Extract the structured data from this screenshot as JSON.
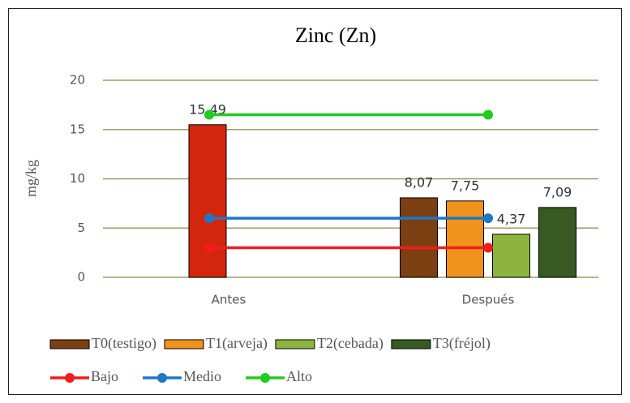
{
  "chart_data": {
    "type": "bar",
    "title": "Zinc (Zn)",
    "y_label": "mg/kg",
    "categories": [
      "Antes",
      "Después"
    ],
    "ylim": [
      0,
      20
    ],
    "yticks": [
      0,
      5,
      10,
      15,
      20
    ],
    "grid": true,
    "series": [
      {
        "name": "T0(testigo)",
        "color": "#7b3f12",
        "point_colors": [
          "#d4260f",
          "#7b3f12"
        ],
        "values": [
          15.49,
          8.07
        ],
        "value_labels": [
          "15,49",
          "8,07"
        ]
      },
      {
        "name": "T1(arveja)",
        "color": "#f0921c",
        "values": [
          null,
          7.75
        ],
        "value_labels": [
          null,
          "7,75"
        ]
      },
      {
        "name": "T2(cebada)",
        "color": "#8db43e",
        "values": [
          null,
          4.37
        ],
        "value_labels": [
          null,
          "4,37"
        ]
      },
      {
        "name": "T3(fréjol)",
        "color": "#375a22",
        "values": [
          null,
          7.09
        ],
        "value_labels": [
          null,
          "7,09"
        ]
      }
    ],
    "lines": [
      {
        "name": "Bajo",
        "color": "#f21c1c",
        "values": [
          3,
          3
        ]
      },
      {
        "name": "Medio",
        "color": "#1f78c4",
        "values": [
          6,
          6
        ]
      },
      {
        "name": "Alto",
        "color": "#1fcc1f",
        "values": [
          16.5,
          16.5
        ]
      }
    ]
  }
}
